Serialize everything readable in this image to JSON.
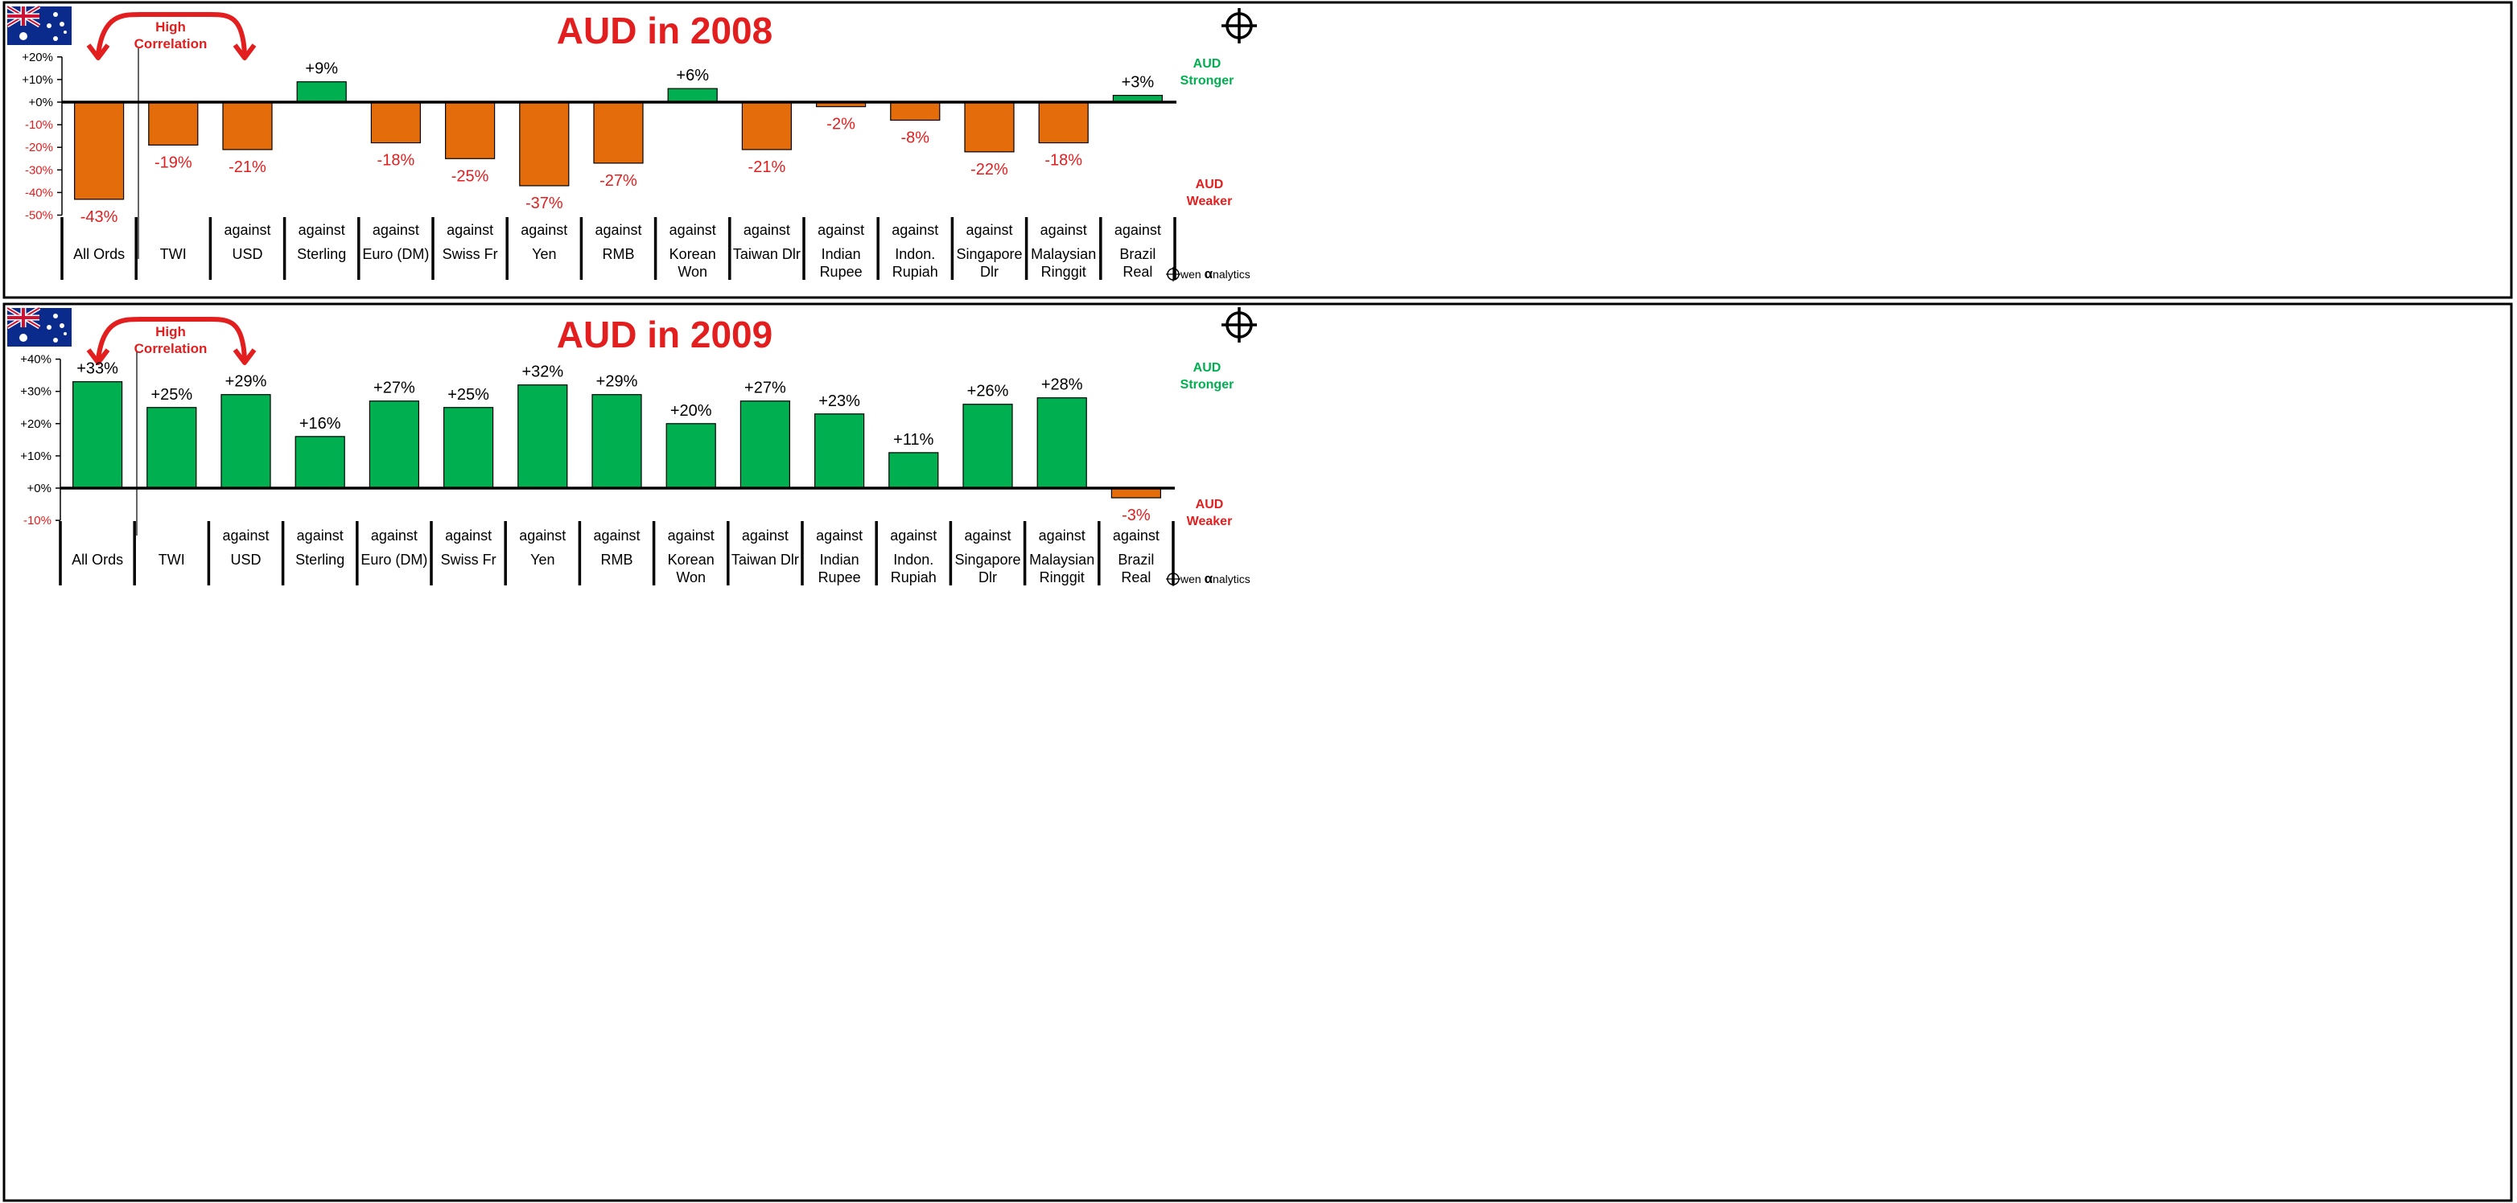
{
  "brand": {
    "prefix": "wen ",
    "alpha": "α",
    "suffix": "nalytics"
  },
  "colors": {
    "positive": "#00B050",
    "negative": "#E46C0A",
    "accent_red": "#E31E1E",
    "axis": "#000000"
  },
  "icons": {
    "flag": "australia-flag-icon",
    "target": "crosshair-icon",
    "brand_mark": "owen-logo-icon",
    "arrow": "double-headed-arrow-icon"
  },
  "chart_data": [
    {
      "type": "bar",
      "title": "AUD in 2008",
      "annotation": [
        "High",
        "Correlation"
      ],
      "stronger_label": [
        "AUD",
        "Stronger"
      ],
      "weaker_label": [
        "AUD",
        "Weaker"
      ],
      "ylim": [
        -50,
        20
      ],
      "yticks": [
        20,
        10,
        0,
        -10,
        -20,
        -30,
        -40,
        -50
      ],
      "ytick_labels": [
        "+20%",
        "+10%",
        "+0%",
        "-10%",
        "-20%",
        "-30%",
        "-40%",
        "-50%"
      ],
      "categories": [
        [
          "All Ords"
        ],
        [
          "TWI"
        ],
        [
          "against",
          "USD"
        ],
        [
          "against",
          "Sterling"
        ],
        [
          "against",
          "Euro (DM)"
        ],
        [
          "against",
          "Swiss Fr"
        ],
        [
          "against",
          "Yen"
        ],
        [
          "against",
          "RMB"
        ],
        [
          "against",
          "Korean",
          "Won"
        ],
        [
          "against",
          "Taiwan Dlr"
        ],
        [
          "against",
          "Indian",
          "Rupee"
        ],
        [
          "against",
          "Indon.",
          "Rupiah"
        ],
        [
          "against",
          "Singapore",
          "Dlr"
        ],
        [
          "against",
          "Malaysian",
          "Ringgit"
        ],
        [
          "against",
          "Brazil",
          "Real"
        ]
      ],
      "values": [
        -43,
        -19,
        -21,
        9,
        -18,
        -25,
        -37,
        -27,
        6,
        -21,
        -2,
        -8,
        -22,
        -18,
        3
      ],
      "value_labels": [
        "-43%",
        "-19%",
        "-21%",
        "+9%",
        "-18%",
        "-25%",
        "-37%",
        "-27%",
        "+6%",
        "-21%",
        "-2%",
        "-8%",
        "-22%",
        "-18%",
        "+3%"
      ]
    },
    {
      "type": "bar",
      "title": "AUD in 2009",
      "annotation": [
        "High",
        "Correlation"
      ],
      "stronger_label": [
        "AUD",
        "Stronger"
      ],
      "weaker_label": [
        "AUD",
        "Weaker"
      ],
      "ylim": [
        -10,
        40
      ],
      "yticks": [
        40,
        30,
        20,
        10,
        0,
        -10
      ],
      "ytick_labels": [
        "+40%",
        "+30%",
        "+20%",
        "+10%",
        "+0%",
        "-10%"
      ],
      "categories": [
        [
          "All Ords"
        ],
        [
          "TWI"
        ],
        [
          "against",
          "USD"
        ],
        [
          "against",
          "Sterling"
        ],
        [
          "against",
          "Euro (DM)"
        ],
        [
          "against",
          "Swiss Fr"
        ],
        [
          "against",
          "Yen"
        ],
        [
          "against",
          "RMB"
        ],
        [
          "against",
          "Korean",
          "Won"
        ],
        [
          "against",
          "Taiwan Dlr"
        ],
        [
          "against",
          "Indian",
          "Rupee"
        ],
        [
          "against",
          "Indon.",
          "Rupiah"
        ],
        [
          "against",
          "Singapore",
          "Dlr"
        ],
        [
          "against",
          "Malaysian",
          "Ringgit"
        ],
        [
          "against",
          "Brazil",
          "Real"
        ]
      ],
      "values": [
        33,
        25,
        29,
        16,
        27,
        25,
        32,
        29,
        20,
        27,
        23,
        11,
        26,
        28,
        -3
      ],
      "value_labels": [
        "+33%",
        "+25%",
        "+29%",
        "+16%",
        "+27%",
        "+25%",
        "+32%",
        "+29%",
        "+20%",
        "+27%",
        "+23%",
        "+11%",
        "+26%",
        "+28%",
        "-3%"
      ]
    }
  ]
}
